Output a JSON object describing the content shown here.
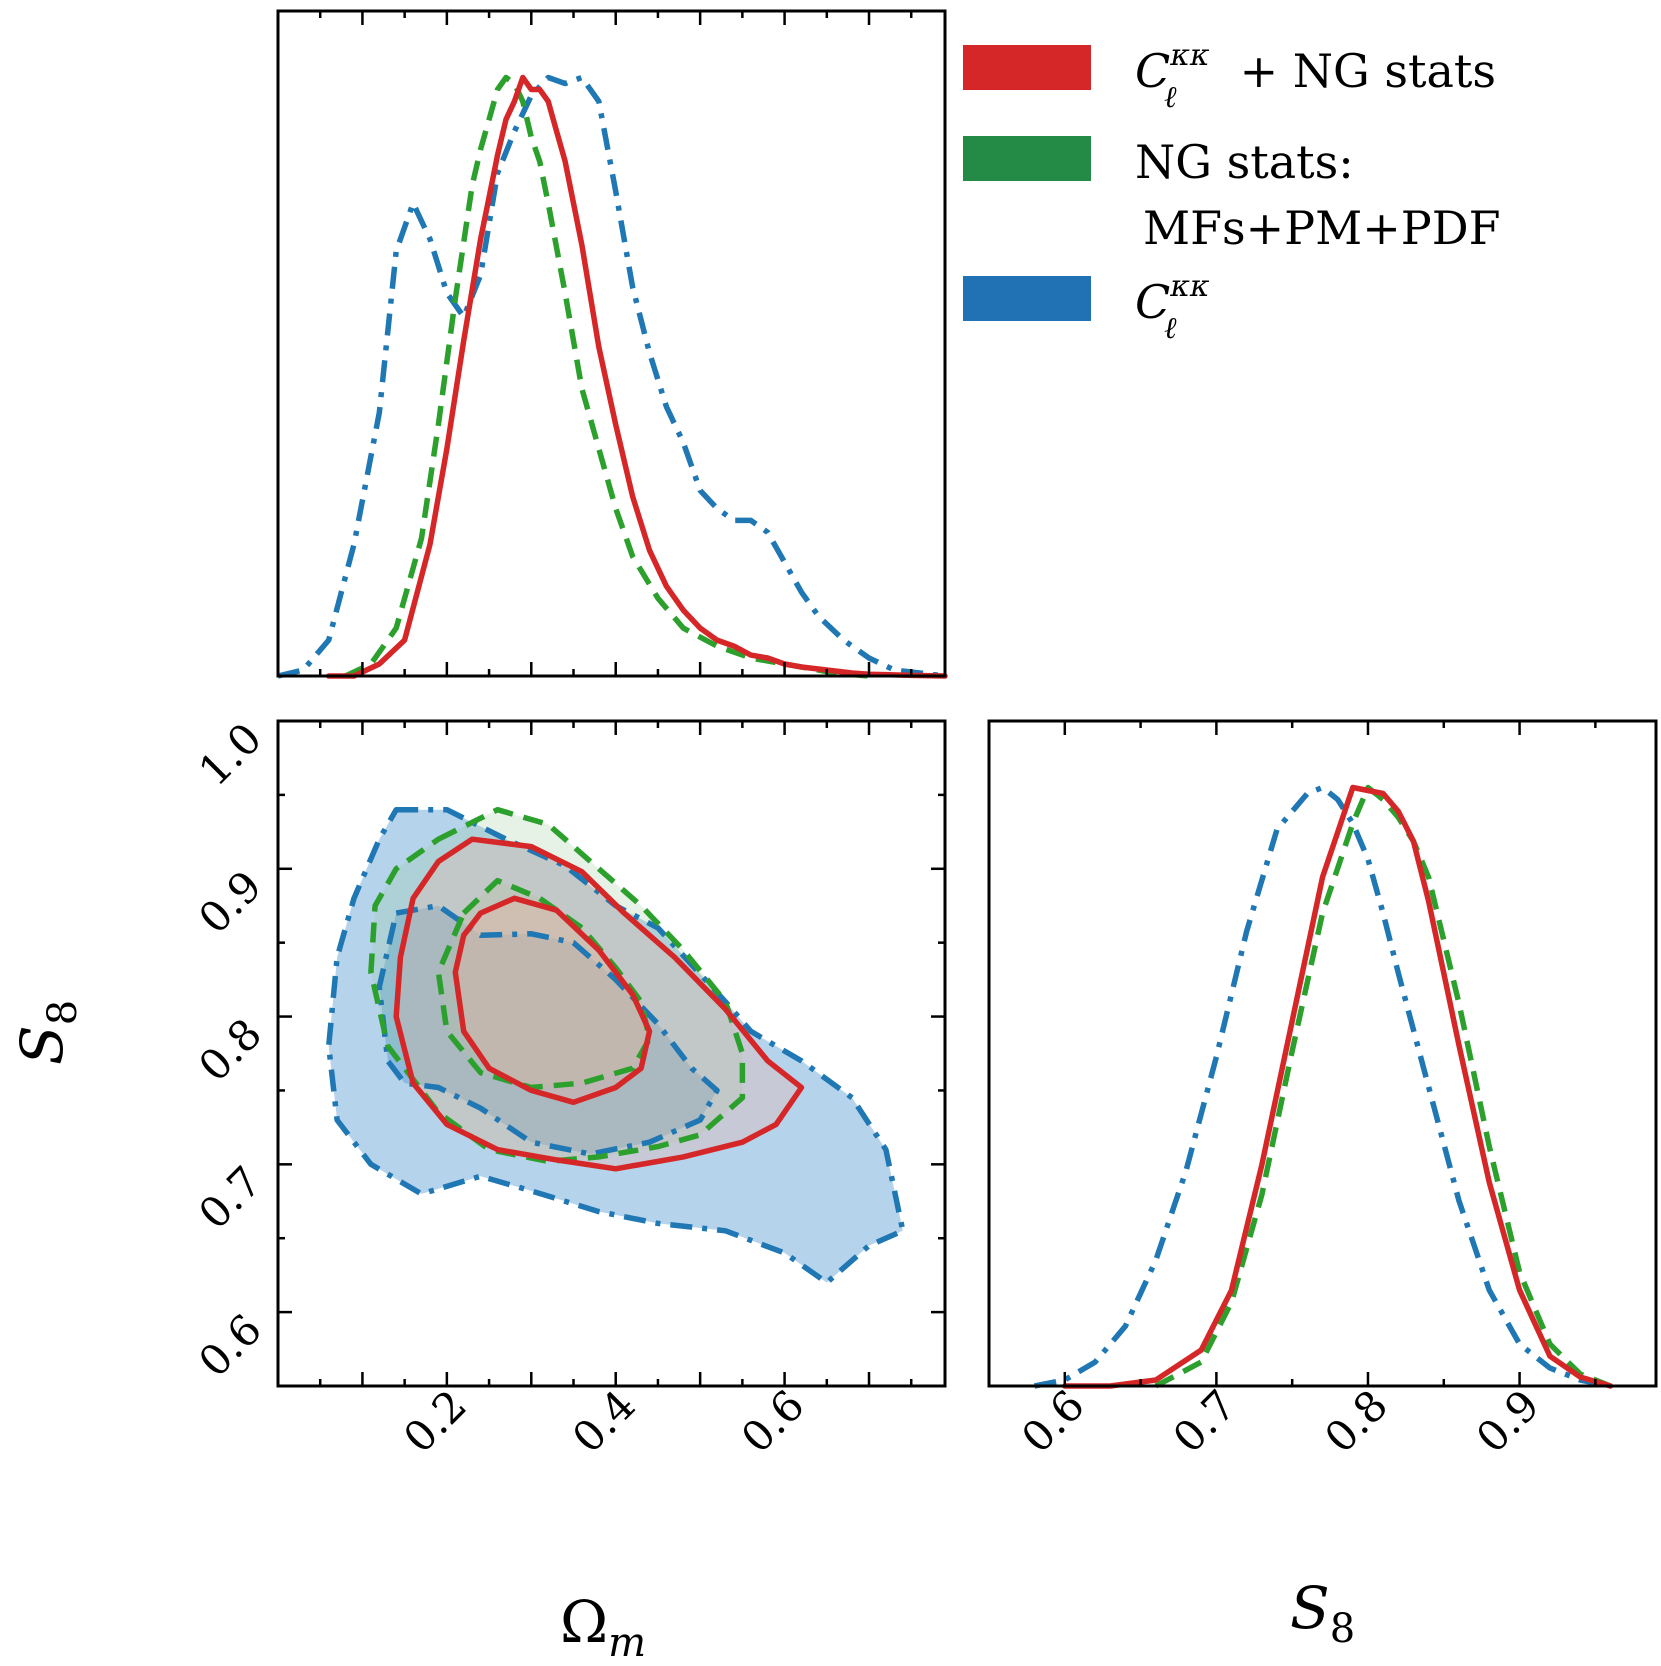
{
  "chart_data": {
    "type": "corner",
    "parameters": [
      "Ω_m",
      "S_8"
    ],
    "axis_titles": {
      "omega_m": "Ω",
      "omega_m_sub": "m",
      "s8": "S",
      "s8_sub": "8"
    },
    "xlim_omega_m": [
      0.0,
      0.79
    ],
    "xlim_s8": [
      0.55,
      0.99
    ],
    "ylim_s8": [
      0.55,
      1.0
    ],
    "omega_m_ticks": [
      "0.2",
      "0.4",
      "0.6"
    ],
    "omega_m_tick_values": [
      0.2,
      0.4,
      0.6
    ],
    "s8_ticks": [
      "0.6",
      "0.7",
      "0.8",
      "0.9",
      "1.0"
    ],
    "s8_tick_values": [
      0.6,
      0.7,
      0.8,
      0.9,
      1.0
    ],
    "s8_bottom_ticks": [
      "0.6",
      "0.7",
      "0.8",
      "0.9"
    ],
    "s8_bottom_tick_values": [
      0.6,
      0.7,
      0.8,
      0.9
    ],
    "legend": {
      "placement": "top-right",
      "entries": [
        {
          "series": "combined",
          "label_main": "C",
          "label_sup": "κκ",
          "label_sub": "ℓ",
          "label_rest": " + NG stats",
          "color": "#d62728"
        },
        {
          "series": "ng",
          "label_line1": "NG stats:",
          "label_line2": "MFs+PM+PDF",
          "color": "#2ca02c"
        },
        {
          "series": "cl",
          "label_main": "C",
          "label_sup": "κκ",
          "label_sub": "ℓ",
          "label_rest": "",
          "color": "#1f77b4"
        }
      ]
    },
    "series": [
      {
        "key": "combined",
        "color": "#d62728",
        "linestyle": "solid",
        "fill": "rgba(255,170,150,0.25)",
        "omega_m_1d": {
          "x": [
            0.06,
            0.09,
            0.12,
            0.15,
            0.18,
            0.2,
            0.22,
            0.24,
            0.25,
            0.26,
            0.27,
            0.28,
            0.29,
            0.3,
            0.31,
            0.32,
            0.33,
            0.34,
            0.36,
            0.38,
            0.4,
            0.42,
            0.44,
            0.46,
            0.48,
            0.5,
            0.52,
            0.54,
            0.56,
            0.58,
            0.6,
            0.62,
            0.65,
            0.68,
            0.7,
            0.75,
            0.79
          ],
          "y": [
            0.0,
            0.0,
            0.02,
            0.06,
            0.22,
            0.38,
            0.56,
            0.73,
            0.8,
            0.87,
            0.93,
            0.96,
            1.0,
            0.98,
            0.98,
            0.96,
            0.91,
            0.86,
            0.72,
            0.55,
            0.42,
            0.3,
            0.21,
            0.15,
            0.11,
            0.08,
            0.06,
            0.05,
            0.035,
            0.03,
            0.02,
            0.015,
            0.01,
            0.005,
            0.003,
            0.001,
            0.0
          ]
        },
        "s8_1d": {
          "x": [
            0.6,
            0.63,
            0.66,
            0.69,
            0.71,
            0.73,
            0.75,
            0.77,
            0.79,
            0.81,
            0.82,
            0.83,
            0.84,
            0.86,
            0.88,
            0.9,
            0.92,
            0.94,
            0.96
          ],
          "y": [
            0.0,
            0.0,
            0.01,
            0.06,
            0.16,
            0.37,
            0.61,
            0.85,
            1.0,
            0.99,
            0.96,
            0.91,
            0.81,
            0.57,
            0.34,
            0.16,
            0.05,
            0.015,
            0.0
          ]
        },
        "contour_68": [
          [
            0.24,
            0.87
          ],
          [
            0.28,
            0.88
          ],
          [
            0.33,
            0.872
          ],
          [
            0.38,
            0.845
          ],
          [
            0.42,
            0.815
          ],
          [
            0.44,
            0.79
          ],
          [
            0.43,
            0.765
          ],
          [
            0.4,
            0.752
          ],
          [
            0.35,
            0.742
          ],
          [
            0.3,
            0.75
          ],
          [
            0.25,
            0.765
          ],
          [
            0.22,
            0.79
          ],
          [
            0.21,
            0.83
          ],
          [
            0.22,
            0.855
          ]
        ],
        "contour_95": [
          [
            0.23,
            0.92
          ],
          [
            0.3,
            0.915
          ],
          [
            0.36,
            0.898
          ],
          [
            0.41,
            0.87
          ],
          [
            0.47,
            0.84
          ],
          [
            0.53,
            0.805
          ],
          [
            0.58,
            0.77
          ],
          [
            0.62,
            0.752
          ],
          [
            0.59,
            0.727
          ],
          [
            0.55,
            0.715
          ],
          [
            0.48,
            0.705
          ],
          [
            0.4,
            0.697
          ],
          [
            0.33,
            0.703
          ],
          [
            0.26,
            0.71
          ],
          [
            0.2,
            0.727
          ],
          [
            0.16,
            0.755
          ],
          [
            0.14,
            0.8
          ],
          [
            0.145,
            0.84
          ],
          [
            0.16,
            0.88
          ],
          [
            0.19,
            0.905
          ]
        ]
      },
      {
        "key": "ng",
        "color": "#2ca02c",
        "linestyle": "dashed",
        "fill": "rgba(150,205,150,0.25)",
        "omega_m_1d": {
          "x": [
            0.08,
            0.11,
            0.14,
            0.17,
            0.19,
            0.21,
            0.23,
            0.24,
            0.25,
            0.26,
            0.27,
            0.28,
            0.29,
            0.3,
            0.31,
            0.32,
            0.34,
            0.36,
            0.38,
            0.4,
            0.42,
            0.45,
            0.48,
            0.52,
            0.56,
            0.6,
            0.66,
            0.7
          ],
          "y": [
            0.0,
            0.02,
            0.08,
            0.23,
            0.42,
            0.63,
            0.82,
            0.88,
            0.93,
            0.98,
            1.0,
            0.99,
            0.96,
            0.9,
            0.86,
            0.79,
            0.64,
            0.48,
            0.38,
            0.28,
            0.2,
            0.13,
            0.08,
            0.05,
            0.03,
            0.02,
            0.005,
            0.0
          ]
        },
        "s8_1d": {
          "x": [
            0.66,
            0.69,
            0.71,
            0.73,
            0.75,
            0.77,
            0.79,
            0.8,
            0.81,
            0.82,
            0.83,
            0.84,
            0.86,
            0.88,
            0.9,
            0.92,
            0.94,
            0.96
          ],
          "y": [
            0.0,
            0.04,
            0.14,
            0.32,
            0.56,
            0.79,
            0.94,
            1.0,
            0.98,
            0.95,
            0.91,
            0.85,
            0.64,
            0.4,
            0.19,
            0.07,
            0.02,
            0.0
          ]
        },
        "contour_68": [
          [
            0.22,
            0.87
          ],
          [
            0.26,
            0.892
          ],
          [
            0.31,
            0.88
          ],
          [
            0.36,
            0.86
          ],
          [
            0.4,
            0.833
          ],
          [
            0.43,
            0.81
          ],
          [
            0.44,
            0.785
          ],
          [
            0.42,
            0.765
          ],
          [
            0.36,
            0.755
          ],
          [
            0.3,
            0.752
          ],
          [
            0.24,
            0.762
          ],
          [
            0.2,
            0.79
          ],
          [
            0.19,
            0.83
          ]
        ],
        "contour_95": [
          [
            0.19,
            0.92
          ],
          [
            0.26,
            0.94
          ],
          [
            0.32,
            0.93
          ],
          [
            0.37,
            0.905
          ],
          [
            0.43,
            0.875
          ],
          [
            0.48,
            0.845
          ],
          [
            0.53,
            0.81
          ],
          [
            0.55,
            0.775
          ],
          [
            0.55,
            0.745
          ],
          [
            0.5,
            0.72
          ],
          [
            0.45,
            0.712
          ],
          [
            0.38,
            0.705
          ],
          [
            0.32,
            0.702
          ],
          [
            0.25,
            0.71
          ],
          [
            0.19,
            0.735
          ],
          [
            0.13,
            0.78
          ],
          [
            0.11,
            0.83
          ],
          [
            0.115,
            0.875
          ],
          [
            0.14,
            0.9
          ]
        ]
      },
      {
        "key": "cl",
        "color": "#1f77b4",
        "linestyle": "dashdot",
        "fill": "rgba(80,150,210,0.42)",
        "omega_m_1d": {
          "x": [
            0.0,
            0.03,
            0.06,
            0.09,
            0.12,
            0.14,
            0.16,
            0.18,
            0.2,
            0.22,
            0.24,
            0.26,
            0.28,
            0.3,
            0.32,
            0.34,
            0.36,
            0.38,
            0.4,
            0.42,
            0.44,
            0.46,
            0.48,
            0.5,
            0.52,
            0.54,
            0.56,
            0.58,
            0.6,
            0.62,
            0.64,
            0.67,
            0.7,
            0.73,
            0.76,
            0.79
          ],
          "y": [
            0.0,
            0.01,
            0.06,
            0.22,
            0.44,
            0.71,
            0.79,
            0.73,
            0.64,
            0.6,
            0.67,
            0.84,
            0.91,
            0.97,
            1.0,
            0.99,
            1.0,
            0.96,
            0.81,
            0.65,
            0.54,
            0.45,
            0.39,
            0.31,
            0.28,
            0.26,
            0.26,
            0.24,
            0.19,
            0.14,
            0.1,
            0.06,
            0.03,
            0.01,
            0.005,
            0.0
          ]
        },
        "s8_1d": {
          "x": [
            0.58,
            0.6,
            0.62,
            0.64,
            0.66,
            0.68,
            0.7,
            0.72,
            0.74,
            0.76,
            0.77,
            0.78,
            0.79,
            0.8,
            0.81,
            0.82,
            0.84,
            0.86,
            0.88,
            0.9,
            0.92,
            0.94,
            0.96
          ],
          "y": [
            0.0,
            0.01,
            0.04,
            0.1,
            0.21,
            0.36,
            0.55,
            0.76,
            0.93,
            0.99,
            1.0,
            0.98,
            0.94,
            0.88,
            0.79,
            0.69,
            0.5,
            0.31,
            0.16,
            0.07,
            0.03,
            0.01,
            0.0
          ]
        },
        "contour_68": [
          [
            0.14,
            0.87
          ],
          [
            0.19,
            0.875
          ],
          [
            0.24,
            0.855
          ],
          [
            0.3,
            0.856
          ],
          [
            0.35,
            0.85
          ],
          [
            0.4,
            0.825
          ],
          [
            0.45,
            0.795
          ],
          [
            0.49,
            0.765
          ],
          [
            0.52,
            0.75
          ],
          [
            0.5,
            0.73
          ],
          [
            0.44,
            0.715
          ],
          [
            0.37,
            0.707
          ],
          [
            0.3,
            0.715
          ],
          [
            0.24,
            0.738
          ],
          [
            0.19,
            0.752
          ],
          [
            0.15,
            0.755
          ],
          [
            0.13,
            0.77
          ],
          [
            0.12,
            0.82
          ]
        ],
        "contour_95": [
          [
            0.14,
            0.94
          ],
          [
            0.2,
            0.94
          ],
          [
            0.27,
            0.92
          ],
          [
            0.34,
            0.902
          ],
          [
            0.4,
            0.875
          ],
          [
            0.45,
            0.86
          ],
          [
            0.49,
            0.835
          ],
          [
            0.53,
            0.81
          ],
          [
            0.56,
            0.79
          ],
          [
            0.62,
            0.77
          ],
          [
            0.68,
            0.745
          ],
          [
            0.72,
            0.71
          ],
          [
            0.74,
            0.655
          ],
          [
            0.7,
            0.645
          ],
          [
            0.65,
            0.62
          ],
          [
            0.6,
            0.64
          ],
          [
            0.53,
            0.655
          ],
          [
            0.45,
            0.66
          ],
          [
            0.38,
            0.668
          ],
          [
            0.3,
            0.682
          ],
          [
            0.24,
            0.692
          ],
          [
            0.17,
            0.68
          ],
          [
            0.11,
            0.7
          ],
          [
            0.07,
            0.73
          ],
          [
            0.06,
            0.78
          ],
          [
            0.07,
            0.84
          ],
          [
            0.09,
            0.88
          ],
          [
            0.12,
            0.92
          ]
        ]
      }
    ]
  }
}
